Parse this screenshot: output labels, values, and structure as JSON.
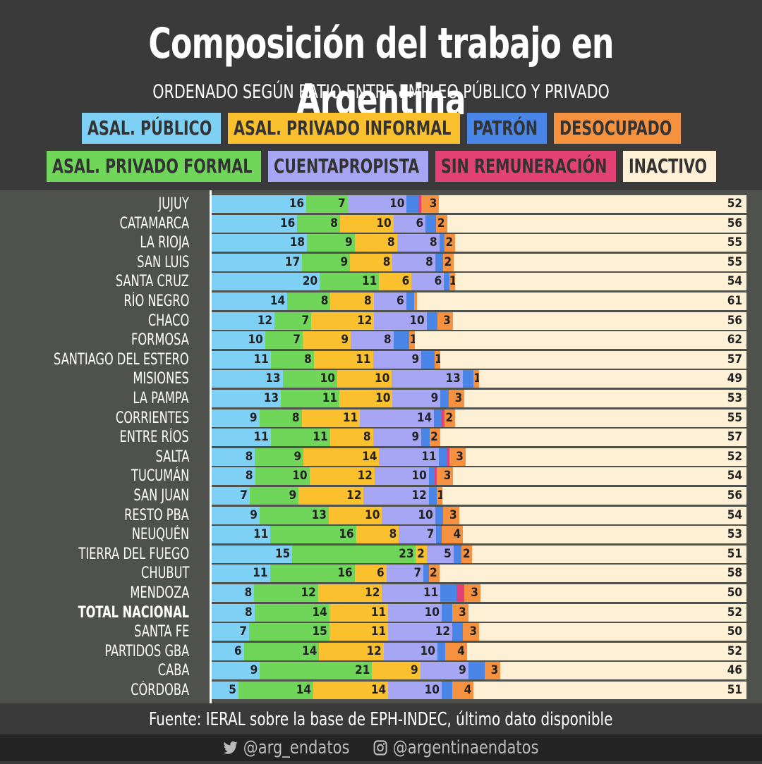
{
  "header": {
    "title": "Composición del trabajo en Argentina",
    "subtitle": "ORDENADO SEGÚN RATIO ENTRE EMPLEO PÚBLICO Y PRIVADO"
  },
  "legend": {
    "row1": [
      {
        "label": "ASAL. PÚBLICO",
        "color": "#7ed0f5"
      },
      {
        "label": "ASAL. PRIVADO INFORMAL",
        "color": "#fbc02d"
      },
      {
        "label": "PATRÓN",
        "color": "#4a86e8"
      },
      {
        "label": "DESOCUPADO",
        "color": "#f6923f"
      }
    ],
    "row2": [
      {
        "label": "ASAL. PRIVADO FORMAL",
        "color": "#6fd65a"
      },
      {
        "label": "CUENTAPROPISTA",
        "color": "#a6a6f5"
      },
      {
        "label": "SIN REMUNERACIÓN",
        "color": "#e34276"
      },
      {
        "label": "INACTIVO",
        "color": "#fdf0d5"
      }
    ]
  },
  "source": "Fuente: IERAL sobre la base de EPH-INDEC, último dato disponible",
  "footer": {
    "twitter_handle": "@arg_endatos",
    "instagram_handle": "@argentinaendatos",
    "icons": [
      "twitter-icon",
      "instagram-icon"
    ]
  },
  "chart_data": {
    "type": "bar",
    "orientation": "horizontal-stacked",
    "title": "Composición del trabajo en Argentina",
    "subtitle": "ORDENADO SEGÚN RATIO ENTRE EMPLEO PÚBLICO Y PRIVADO",
    "unit": "%",
    "series_order": [
      "ASAL. PÚBLICO",
      "ASAL. PRIVADO FORMAL",
      "ASAL. PRIVADO INFORMAL",
      "CUENTAPROPISTA",
      "PATRÓN",
      "SIN REMUNERACIÓN",
      "DESOCUPADO",
      "INACTIVO"
    ],
    "colors": [
      "#7ed0f5",
      "#6fd65a",
      "#fbc02d",
      "#a6a6f5",
      "#4a86e8",
      "#e34276",
      "#f6923f",
      "#fdf0d5"
    ],
    "bold_category": "TOTAL NACIONAL",
    "rows": [
      {
        "name": "JUJUY",
        "values": [
          16,
          7,
          0,
          10,
          2,
          0.5,
          3,
          52
        ],
        "labels": [
          "16",
          "7",
          "",
          "10",
          "",
          "",
          "3",
          "52"
        ]
      },
      {
        "name": "CATAMARCA",
        "values": [
          16,
          8,
          10,
          6,
          2,
          0,
          2,
          56
        ],
        "labels": [
          "16",
          "8",
          "10",
          "6",
          "",
          "",
          "2",
          "56"
        ]
      },
      {
        "name": "LA RIOJA",
        "values": [
          18,
          9,
          8,
          8,
          1,
          0,
          2,
          55
        ],
        "labels": [
          "18",
          "9",
          "8",
          "8",
          "",
          "",
          "2",
          "55"
        ]
      },
      {
        "name": "SAN LUIS",
        "values": [
          17,
          9,
          8,
          8,
          1.5,
          0,
          2,
          55
        ],
        "labels": [
          "17",
          "9",
          "8",
          "8",
          "",
          "",
          "2",
          "55"
        ]
      },
      {
        "name": "SANTA CRUZ",
        "values": [
          20,
          11,
          6,
          6,
          1,
          0,
          1,
          54
        ],
        "labels": [
          "20",
          "11",
          "6",
          "6",
          "",
          "",
          "1",
          "54"
        ]
      },
      {
        "name": "RÍO NEGRO",
        "values": [
          14,
          8,
          8,
          6,
          1.5,
          0,
          0.5,
          61
        ],
        "labels": [
          "14",
          "8",
          "8",
          "6",
          "",
          "",
          "",
          "61"
        ]
      },
      {
        "name": "CHACO",
        "values": [
          12,
          7,
          12,
          10,
          2,
          0,
          3,
          56
        ],
        "labels": [
          "12",
          "7",
          "12",
          "10",
          "",
          "",
          "3",
          "56"
        ]
      },
      {
        "name": "FORMOSA",
        "values": [
          10,
          7,
          9,
          8,
          3,
          0,
          1,
          62
        ],
        "labels": [
          "10",
          "7",
          "9",
          "8",
          "",
          "",
          "1",
          "62"
        ]
      },
      {
        "name": "SANTIAGO DEL ESTERO",
        "values": [
          11,
          8,
          11,
          9,
          2.5,
          0,
          1,
          57
        ],
        "labels": [
          "11",
          "8",
          "11",
          "9",
          "",
          "",
          "1",
          "57"
        ]
      },
      {
        "name": "MISIONES",
        "values": [
          13,
          10,
          10,
          13,
          2,
          0,
          1,
          49
        ],
        "labels": [
          "13",
          "10",
          "10",
          "13",
          "",
          "",
          "1",
          "49"
        ]
      },
      {
        "name": "LA PAMPA",
        "values": [
          13,
          11,
          10,
          9,
          1.5,
          0,
          3,
          53
        ],
        "labels": [
          "13",
          "11",
          "10",
          "9",
          "",
          "",
          "3",
          "53"
        ]
      },
      {
        "name": "CORRIENTES",
        "values": [
          9,
          8,
          11,
          14,
          1.5,
          0.5,
          2,
          55
        ],
        "labels": [
          "9",
          "8",
          "11",
          "14",
          "",
          "",
          "2",
          "55"
        ]
      },
      {
        "name": "ENTRE RÍOS",
        "values": [
          11,
          11,
          8,
          9,
          1.5,
          0,
          2,
          57
        ],
        "labels": [
          "11",
          "11",
          "8",
          "9",
          "",
          "",
          "2",
          "57"
        ]
      },
      {
        "name": "SALTA",
        "values": [
          8,
          9,
          14,
          11,
          1.5,
          0.5,
          3,
          52
        ],
        "labels": [
          "8",
          "9",
          "14",
          "11",
          "",
          "",
          "3",
          "52"
        ]
      },
      {
        "name": "TUCUMÁN",
        "values": [
          8,
          10,
          12,
          10,
          1,
          0.5,
          3,
          54
        ],
        "labels": [
          "8",
          "10",
          "12",
          "10",
          "",
          "",
          "3",
          "54"
        ]
      },
      {
        "name": "SAN JUAN",
        "values": [
          7,
          9,
          12,
          12,
          1.5,
          0,
          1,
          56
        ],
        "labels": [
          "7",
          "9",
          "12",
          "12",
          "",
          "",
          "1",
          "56"
        ]
      },
      {
        "name": "RESTO PBA",
        "values": [
          9,
          13,
          10,
          10,
          1.5,
          0,
          3,
          54
        ],
        "labels": [
          "9",
          "13",
          "10",
          "10",
          "",
          "",
          "3",
          "54"
        ]
      },
      {
        "name": "NEUQUÉN",
        "values": [
          11,
          16,
          8,
          7,
          1,
          0,
          4,
          53
        ],
        "labels": [
          "11",
          "16",
          "8",
          "7",
          "",
          "",
          "4",
          "53"
        ]
      },
      {
        "name": "TIERRA DEL FUEGO",
        "values": [
          15,
          23,
          2,
          5,
          1.5,
          0,
          2,
          51
        ],
        "labels": [
          "15",
          "23",
          "2",
          "5",
          "",
          "",
          "2",
          "51"
        ]
      },
      {
        "name": "CHUBUT",
        "values": [
          11,
          16,
          6,
          7,
          1,
          0,
          2,
          58
        ],
        "labels": [
          "11",
          "16",
          "6",
          "7",
          "",
          "",
          "2",
          "58"
        ]
      },
      {
        "name": "MENDOZA",
        "values": [
          8,
          12,
          12,
          11,
          3,
          1.5,
          3,
          50
        ],
        "labels": [
          "8",
          "12",
          "12",
          "11",
          "",
          "",
          "3",
          "50"
        ]
      },
      {
        "name": "TOTAL NACIONAL",
        "values": [
          8,
          14,
          11,
          10,
          2,
          0,
          3,
          52
        ],
        "labels": [
          "8",
          "14",
          "11",
          "10",
          "",
          "",
          "3",
          "52"
        ]
      },
      {
        "name": "SANTA FE",
        "values": [
          7,
          15,
          11,
          12,
          2,
          0,
          3,
          50
        ],
        "labels": [
          "7",
          "15",
          "11",
          "12",
          "",
          "",
          "3",
          "50"
        ]
      },
      {
        "name": "PARTIDOS GBA",
        "values": [
          6,
          14,
          12,
          10,
          1.5,
          0,
          4,
          52
        ],
        "labels": [
          "6",
          "14",
          "12",
          "10",
          "",
          "",
          "4",
          "52"
        ]
      },
      {
        "name": "CABA",
        "values": [
          9,
          21,
          9,
          9,
          3,
          0,
          3,
          46
        ],
        "labels": [
          "9",
          "21",
          "9",
          "9",
          "",
          "",
          "3",
          "46"
        ]
      },
      {
        "name": "CÓRDOBA",
        "values": [
          5,
          14,
          14,
          10,
          2,
          0,
          4,
          51
        ],
        "labels": [
          "5",
          "14",
          "14",
          "10",
          "",
          "",
          "4",
          "51"
        ]
      }
    ]
  }
}
